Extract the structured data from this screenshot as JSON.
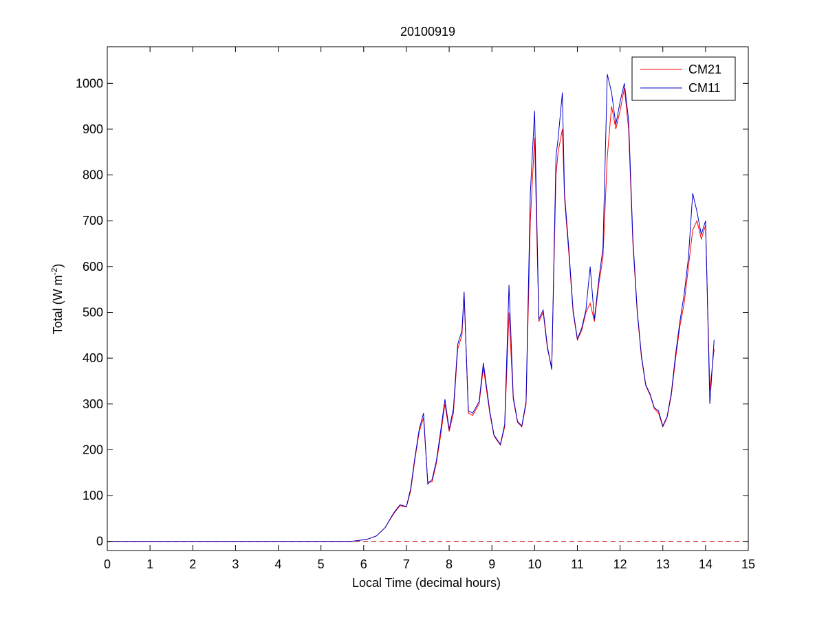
{
  "chart_data": {
    "type": "line",
    "title": "20100919",
    "xlabel": "Local Time (decimal hours)",
    "ylabel": "Total (W m",
    "ylabel_sup": "-2",
    "ylabel_end": ")",
    "xlim": [
      0,
      15
    ],
    "ylim": [
      -20,
      1080
    ],
    "xticks": [
      0,
      1,
      2,
      3,
      4,
      5,
      6,
      7,
      8,
      9,
      10,
      11,
      12,
      13,
      14,
      15
    ],
    "yticks": [
      0,
      100,
      200,
      300,
      400,
      500,
      600,
      700,
      800,
      900,
      1000
    ],
    "grid": false,
    "legend_position": "top-right",
    "zero_reference_line": {
      "value": 0,
      "style": "dashed",
      "color": "#cc0000"
    },
    "series": [
      {
        "name": "CM21",
        "color": "#ff0000",
        "x": [
          0,
          5.7,
          5.9,
          6.1,
          6.3,
          6.5,
          6.7,
          6.85,
          7.0,
          7.1,
          7.2,
          7.3,
          7.4,
          7.5,
          7.6,
          7.7,
          7.8,
          7.9,
          8.0,
          8.1,
          8.2,
          8.3,
          8.35,
          8.45,
          8.55,
          8.7,
          8.8,
          8.95,
          9.05,
          9.2,
          9.3,
          9.4,
          9.5,
          9.6,
          9.7,
          9.8,
          9.9,
          10.0,
          10.1,
          10.2,
          10.3,
          10.4,
          10.5,
          10.55,
          10.65,
          10.7,
          10.8,
          10.9,
          11.0,
          11.1,
          11.2,
          11.3,
          11.4,
          11.5,
          11.6,
          11.7,
          11.8,
          11.9,
          12.0,
          12.1,
          12.2,
          12.3,
          12.4,
          12.5,
          12.6,
          12.7,
          12.8,
          12.9,
          13.0,
          13.1,
          13.2,
          13.3,
          13.4,
          13.5,
          13.6,
          13.7,
          13.8,
          13.9,
          14.0,
          14.1,
          14.2
        ],
        "y": [
          0,
          0,
          2,
          5,
          12,
          30,
          60,
          78,
          75,
          110,
          180,
          240,
          270,
          130,
          130,
          170,
          230,
          300,
          240,
          280,
          420,
          450,
          540,
          280,
          275,
          300,
          380,
          280,
          230,
          210,
          250,
          500,
          310,
          260,
          250,
          300,
          700,
          880,
          480,
          500,
          420,
          380,
          800,
          850,
          900,
          750,
          630,
          500,
          440,
          460,
          500,
          520,
          480,
          560,
          620,
          840,
          950,
          900,
          940,
          990,
          900,
          650,
          500,
          400,
          340,
          320,
          290,
          280,
          250,
          270,
          320,
          400,
          470,
          520,
          600,
          680,
          700,
          660,
          690,
          330,
          420
        ]
      },
      {
        "name": "CM11",
        "color": "#0000cc",
        "x": [
          0,
          5.7,
          5.9,
          6.1,
          6.3,
          6.5,
          6.7,
          6.85,
          7.0,
          7.1,
          7.2,
          7.3,
          7.4,
          7.5,
          7.6,
          7.7,
          7.8,
          7.9,
          8.0,
          8.1,
          8.2,
          8.3,
          8.35,
          8.45,
          8.55,
          8.7,
          8.8,
          8.95,
          9.05,
          9.2,
          9.3,
          9.4,
          9.5,
          9.6,
          9.7,
          9.8,
          9.9,
          10.0,
          10.1,
          10.2,
          10.3,
          10.4,
          10.5,
          10.55,
          10.65,
          10.7,
          10.8,
          10.9,
          11.0,
          11.1,
          11.2,
          11.3,
          11.4,
          11.5,
          11.6,
          11.7,
          11.8,
          11.9,
          12.0,
          12.1,
          12.2,
          12.3,
          12.4,
          12.5,
          12.6,
          12.7,
          12.8,
          12.9,
          13.0,
          13.1,
          13.2,
          13.3,
          13.4,
          13.5,
          13.6,
          13.7,
          13.8,
          13.9,
          14.0,
          14.1,
          14.2
        ],
        "y": [
          0,
          0,
          2,
          5,
          12,
          30,
          62,
          80,
          76,
          115,
          185,
          245,
          280,
          125,
          135,
          175,
          240,
          310,
          245,
          290,
          430,
          460,
          545,
          285,
          280,
          305,
          390,
          285,
          232,
          212,
          255,
          560,
          315,
          262,
          252,
          305,
          760,
          940,
          485,
          505,
          425,
          375,
          840,
          880,
          980,
          760,
          640,
          505,
          442,
          465,
          505,
          600,
          485,
          570,
          640,
          1020,
          980,
          910,
          960,
          1000,
          920,
          660,
          505,
          405,
          342,
          322,
          292,
          285,
          252,
          272,
          325,
          410,
          480,
          540,
          620,
          760,
          720,
          670,
          700,
          300,
          440
        ]
      }
    ]
  }
}
